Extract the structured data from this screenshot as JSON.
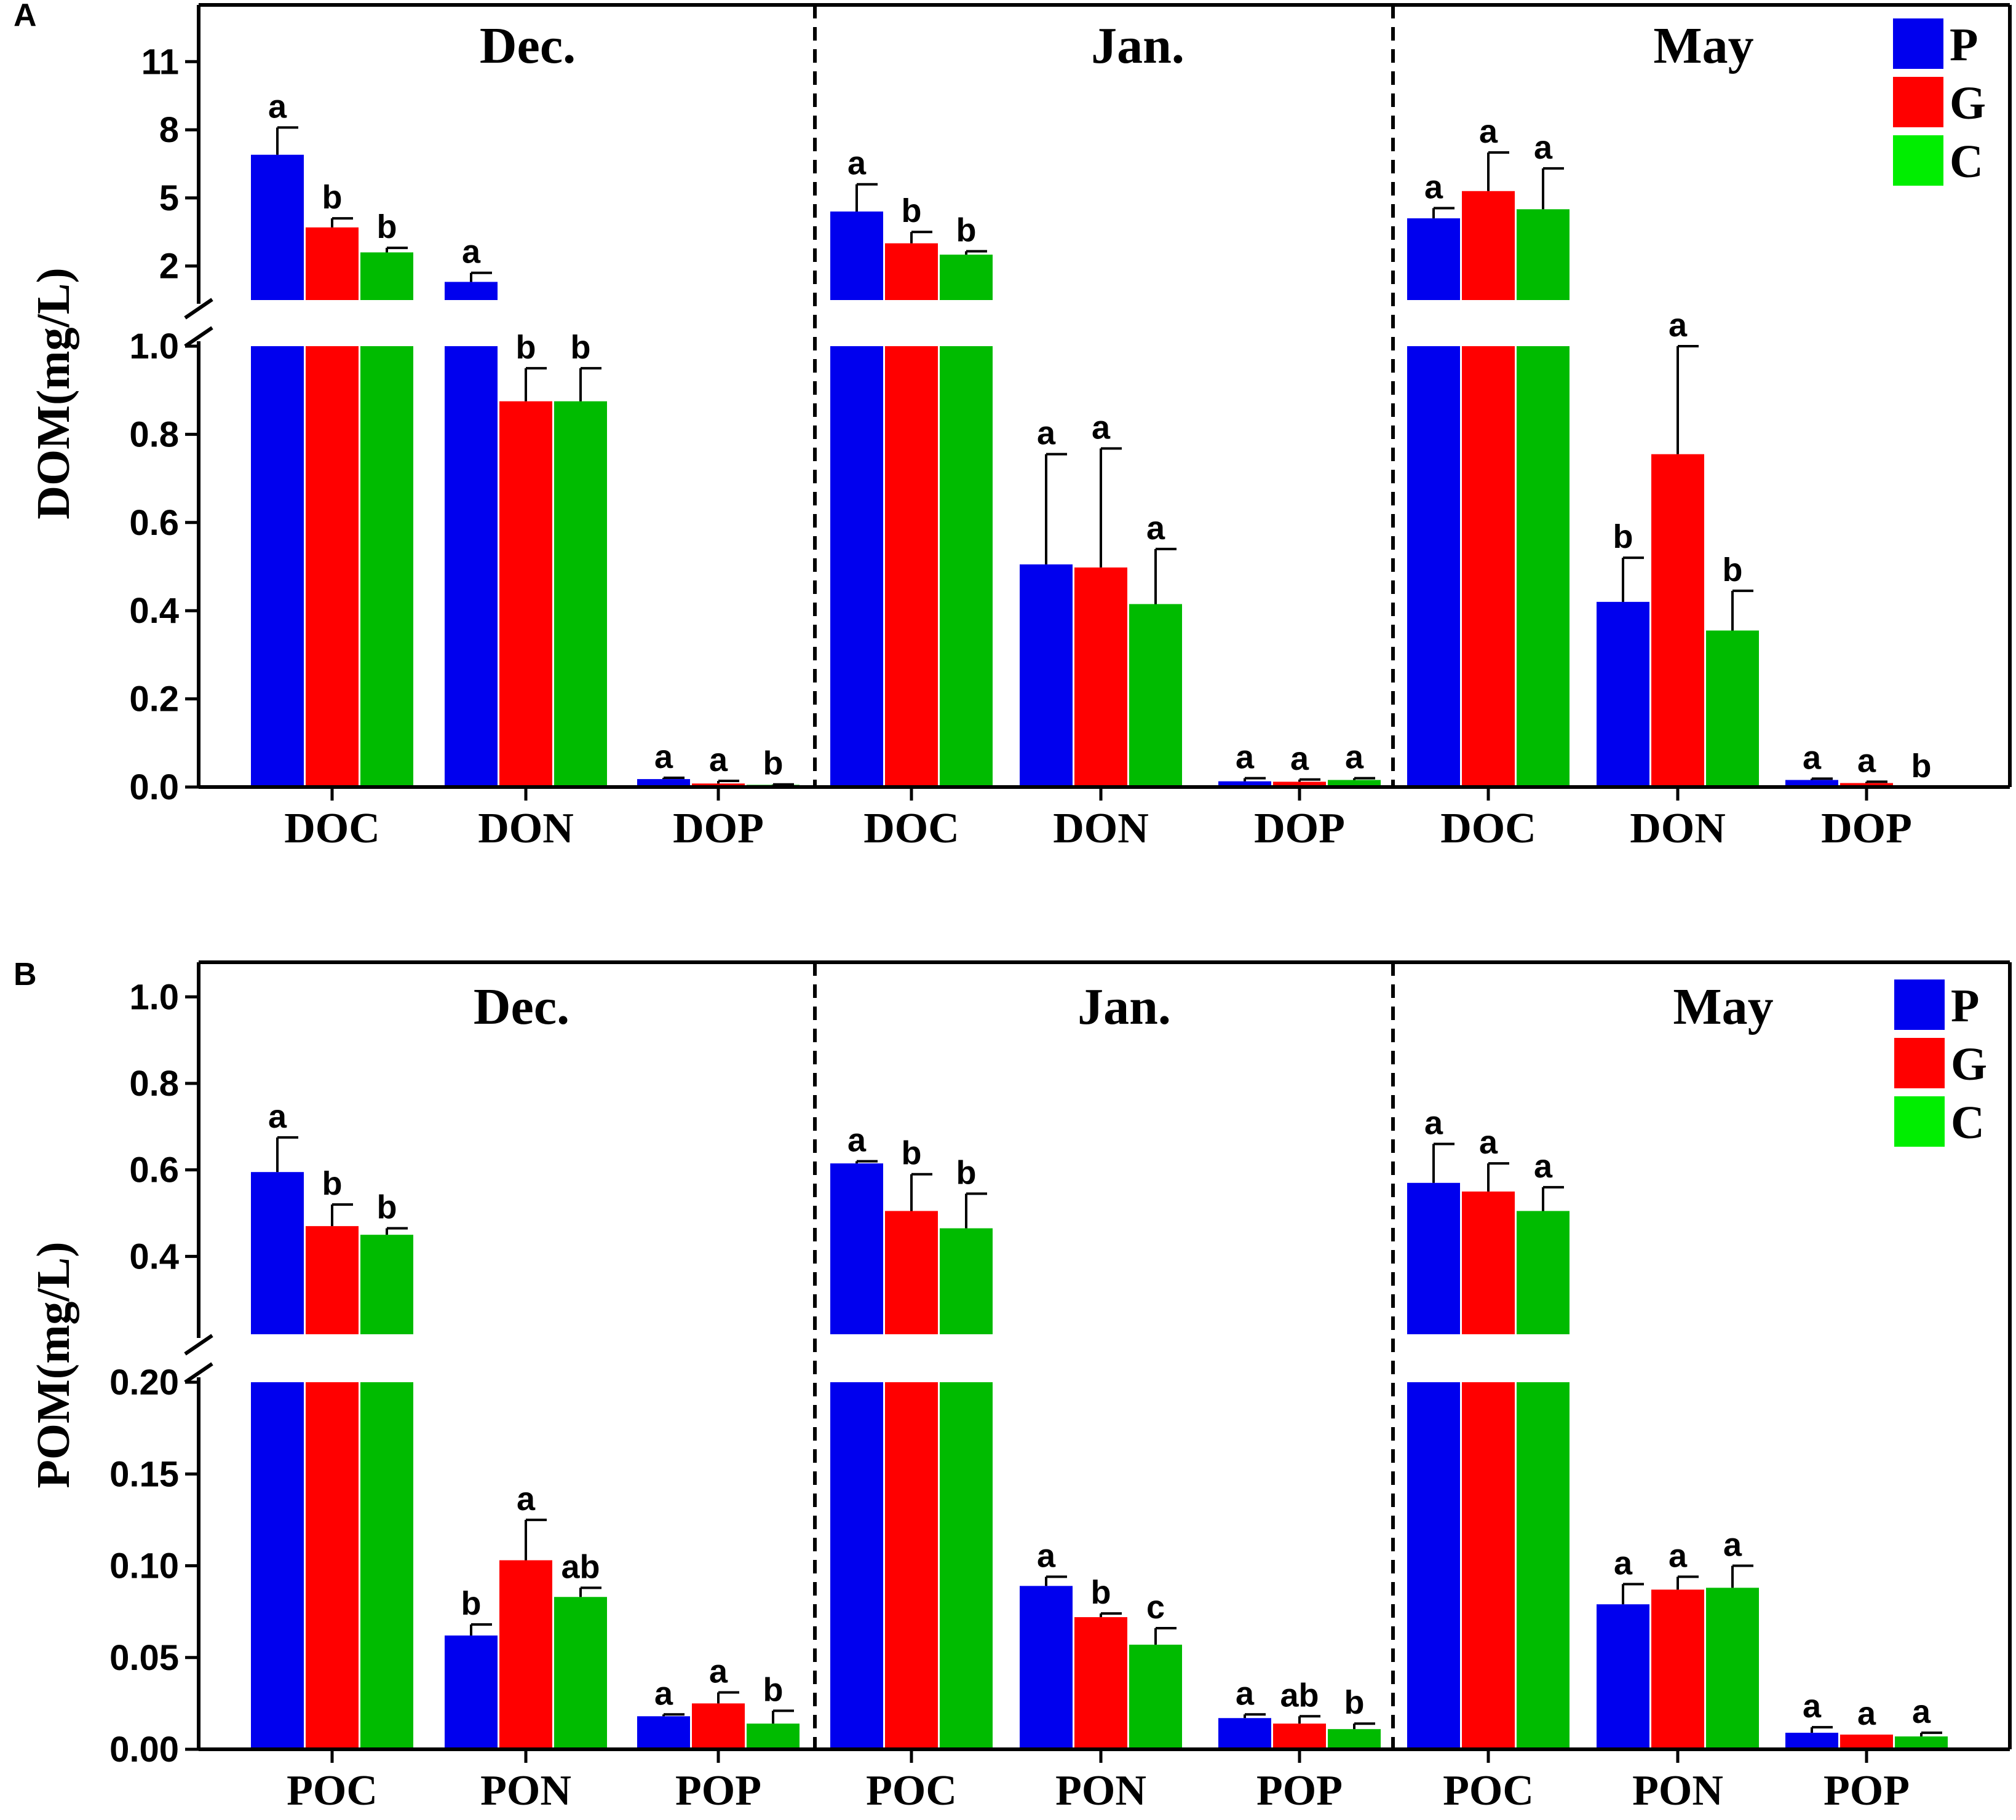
{
  "colors": {
    "P": "#0000ee",
    "G": "#ff0000",
    "C": "#00bb00",
    "C_legend": "#00ee00"
  },
  "legend": [
    {
      "key": "P",
      "label": "P"
    },
    {
      "key": "G",
      "label": "G"
    },
    {
      "key": "C",
      "label": "C"
    }
  ],
  "chart_data": [
    {
      "type": "bar",
      "panel_label": "A",
      "ylabel": "DOM(mg/L)",
      "months": [
        "Dec.",
        "Jan.",
        "May"
      ],
      "categories": [
        "DOC",
        "DON",
        "DOP"
      ],
      "series_names": [
        "P",
        "G",
        "C"
      ],
      "axis_break": true,
      "lower_axis": {
        "ylim": [
          0,
          1.0
        ],
        "ticks": [
          "0.0",
          "0.2",
          "0.4",
          "0.6",
          "0.8",
          "1.0"
        ]
      },
      "upper_axis": {
        "ylim": [
          0.5,
          13.5
        ],
        "ticks": [
          "2",
          "5",
          "8",
          "11"
        ]
      },
      "groups": [
        {
          "month": "Dec.",
          "category": "DOC",
          "values": [
            6.9,
            3.7,
            2.6
          ],
          "errors": [
            1.2,
            0.4,
            0.2
          ],
          "letters": [
            "a",
            "b",
            "b"
          ]
        },
        {
          "month": "Dec.",
          "category": "DON",
          "values": [
            1.3,
            0.875,
            0.875
          ],
          "errors": [
            0.4,
            0.075,
            0.075
          ],
          "letters": [
            "a",
            "b",
            "b"
          ]
        },
        {
          "month": "Dec.",
          "category": "DOP",
          "values": [
            0.018,
            0.008,
            0.005
          ],
          "errors": [
            0.003,
            0.006,
            0.001
          ],
          "letters": [
            "a",
            "a",
            "b"
          ]
        },
        {
          "month": "Jan.",
          "category": "DOC",
          "values": [
            4.4,
            3.0,
            2.5
          ],
          "errors": [
            1.2,
            0.5,
            0.15
          ],
          "letters": [
            "a",
            "b",
            "b"
          ]
        },
        {
          "month": "Jan.",
          "category": "DON",
          "values": [
            0.505,
            0.498,
            0.415
          ],
          "errors": [
            0.25,
            0.27,
            0.125
          ],
          "letters": [
            "a",
            "a",
            "a"
          ]
        },
        {
          "month": "Jan.",
          "category": "DOP",
          "values": [
            0.013,
            0.012,
            0.016
          ],
          "errors": [
            0.007,
            0.005,
            0.004
          ],
          "letters": [
            "a",
            "a",
            "a"
          ]
        },
        {
          "month": "May",
          "category": "DOC",
          "values": [
            4.1,
            5.3,
            4.5
          ],
          "errors": [
            0.45,
            1.7,
            1.8
          ],
          "letters": [
            "a",
            "a",
            "a"
          ]
        },
        {
          "month": "May",
          "category": "DON",
          "values": [
            0.42,
            0.755,
            0.355
          ],
          "errors": [
            0.1,
            0.245,
            0.09
          ],
          "letters": [
            "b",
            "a",
            "b"
          ]
        },
        {
          "month": "May",
          "category": "DOP",
          "values": [
            0.016,
            0.009,
            0.0
          ],
          "errors": [
            0.003,
            0.003,
            0.0
          ],
          "letters": [
            "a",
            "a",
            "b"
          ]
        }
      ]
    },
    {
      "type": "bar",
      "panel_label": "B",
      "ylabel": "POM(mg/L)",
      "months": [
        "Dec.",
        "Jan.",
        "May"
      ],
      "categories": [
        "POC",
        "PON",
        "POP"
      ],
      "series_names": [
        "P",
        "G",
        "C"
      ],
      "axis_break": true,
      "lower_axis": {
        "ylim": [
          0,
          0.2
        ],
        "ticks": [
          "0.00",
          "0.05",
          "0.10",
          "0.15",
          "0.20"
        ]
      },
      "upper_axis": {
        "ylim": [
          0.22,
          1.08
        ],
        "ticks": [
          "0.4",
          "0.6",
          "0.8",
          "1.0"
        ]
      },
      "groups": [
        {
          "month": "Dec.",
          "category": "POC",
          "values": [
            0.595,
            0.47,
            0.45
          ],
          "errors": [
            0.08,
            0.05,
            0.015
          ],
          "letters": [
            "a",
            "b",
            "b"
          ]
        },
        {
          "month": "Dec.",
          "category": "PON",
          "values": [
            0.062,
            0.103,
            0.083
          ],
          "errors": [
            0.006,
            0.022,
            0.005
          ],
          "letters": [
            "b",
            "a",
            "ab"
          ]
        },
        {
          "month": "Dec.",
          "category": "POP",
          "values": [
            0.018,
            0.025,
            0.014
          ],
          "errors": [
            0.001,
            0.006,
            0.007
          ],
          "letters": [
            "a",
            "a",
            "b"
          ]
        },
        {
          "month": "Jan.",
          "category": "POC",
          "values": [
            0.615,
            0.505,
            0.465
          ],
          "errors": [
            0.005,
            0.085,
            0.08
          ],
          "letters": [
            "a",
            "b",
            "b"
          ]
        },
        {
          "month": "Jan.",
          "category": "PON",
          "values": [
            0.089,
            0.072,
            0.057
          ],
          "errors": [
            0.005,
            0.002,
            0.009
          ],
          "letters": [
            "a",
            "b",
            "c"
          ]
        },
        {
          "month": "Jan.",
          "category": "POP",
          "values": [
            0.017,
            0.014,
            0.011
          ],
          "errors": [
            0.002,
            0.004,
            0.003
          ],
          "letters": [
            "a",
            "ab",
            "b"
          ]
        },
        {
          "month": "May",
          "category": "POC",
          "values": [
            0.57,
            0.55,
            0.505
          ],
          "errors": [
            0.09,
            0.065,
            0.055
          ],
          "letters": [
            "a",
            "a",
            "a"
          ]
        },
        {
          "month": "May",
          "category": "PON",
          "values": [
            0.079,
            0.087,
            0.088
          ],
          "errors": [
            0.011,
            0.007,
            0.012
          ],
          "letters": [
            "a",
            "a",
            "a"
          ]
        },
        {
          "month": "May",
          "category": "POP",
          "values": [
            0.009,
            0.008,
            0.007
          ],
          "errors": [
            0.003,
            0.0,
            0.002
          ],
          "letters": [
            "a",
            "a",
            "a"
          ]
        }
      ]
    }
  ]
}
